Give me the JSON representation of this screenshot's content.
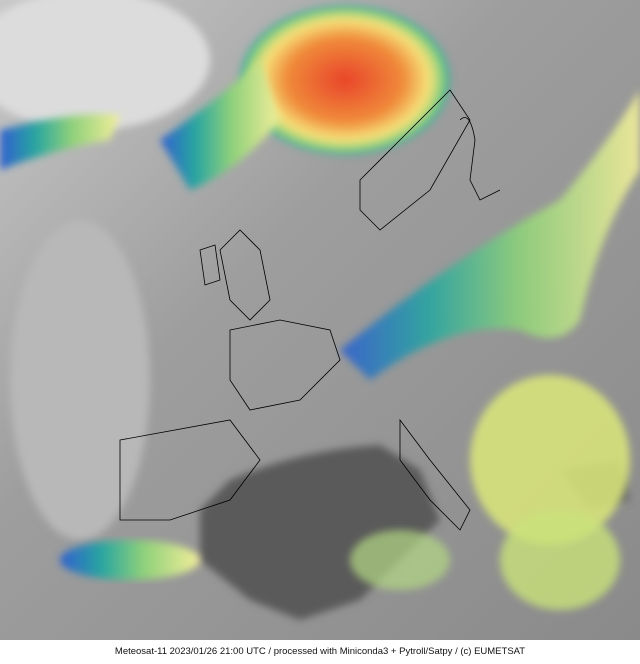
{
  "image": {
    "type": "satellite infrared composite",
    "region": "Europe",
    "colors": {
      "cold_cloud_tops": [
        "#e8442a",
        "#f39a3a",
        "#f6e27a",
        "#8fd17a",
        "#2aa6a0",
        "#2f5fd0"
      ],
      "background_gray": "#9a9a9a",
      "sea_dark": "#505050",
      "coastline": "#000000"
    }
  },
  "caption": "Meteosat-11 2023/01/26 21:00 UTC / processed with Miniconda3 + Pytroll/Satpy / (c) EUMETSAT"
}
